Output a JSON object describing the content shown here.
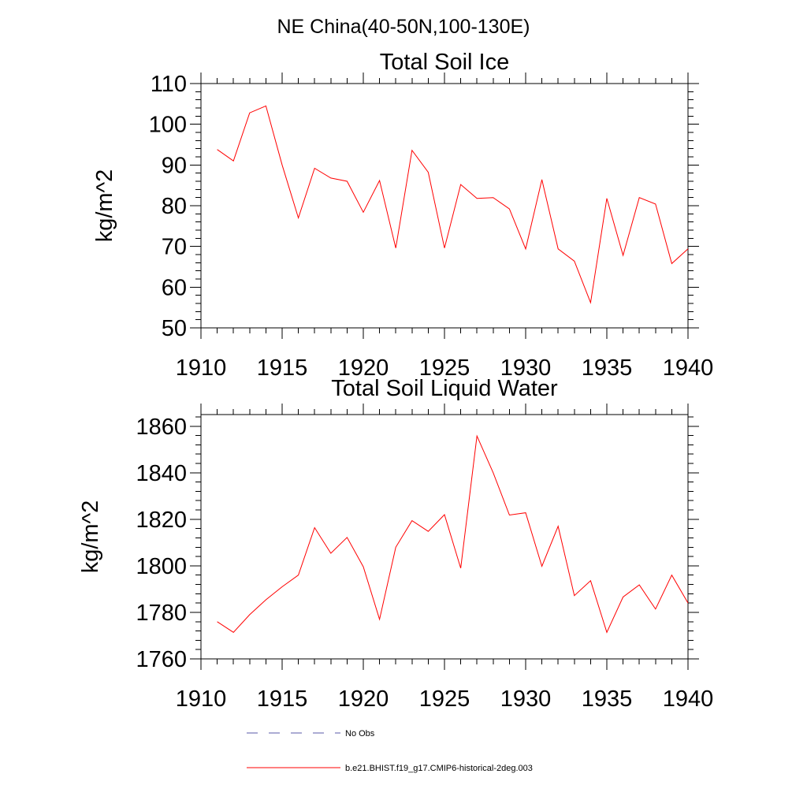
{
  "figure_title": "NE China(40-50N,100-130E)",
  "colors": {
    "model_line": "#ff0000",
    "obs_line": "#5a5aaa",
    "axis": "#000000"
  },
  "legend": {
    "items": [
      {
        "label": "No Obs",
        "style": "dashed",
        "color": "#5a5aaa"
      },
      {
        "label": "b.e21.BHIST.f19_g17.CMIP6-historical-2deg.003",
        "style": "solid",
        "color": "#ff0000"
      }
    ]
  },
  "chart_data": [
    {
      "type": "line",
      "title": "Total Soil Ice",
      "xlabel": "",
      "ylabel": "kg/m^2",
      "xlim": [
        1910,
        1940
      ],
      "ylim": [
        50,
        110
      ],
      "xticks": [
        1910,
        1915,
        1920,
        1925,
        1930,
        1935,
        1940
      ],
      "xtick_labels": [
        "1910",
        "1915",
        "1920",
        "1925",
        "1930",
        "1935",
        "1940"
      ],
      "yticks": [
        50,
        60,
        70,
        80,
        90,
        100,
        110
      ],
      "ytick_labels": [
        "50",
        "60",
        "70",
        "80",
        "90",
        "100",
        "110"
      ],
      "x_minor_step": 1,
      "y_minor_step": 2,
      "grid": false,
      "series": [
        {
          "name": "b.e21.BHIST.f19_g17.CMIP6-historical-2deg.003",
          "color": "#ff0000",
          "x": [
            1911,
            1912,
            1913,
            1914,
            1915,
            1916,
            1917,
            1918,
            1919,
            1920,
            1921,
            1922,
            1923,
            1924,
            1925,
            1926,
            1927,
            1928,
            1929,
            1930,
            1931,
            1932,
            1933,
            1934,
            1935,
            1936,
            1937,
            1938,
            1939,
            1940
          ],
          "values": [
            93.8,
            91.0,
            102.8,
            104.5,
            90.0,
            77.0,
            89.2,
            86.8,
            86.0,
            78.4,
            86.2,
            69.6,
            93.6,
            88.2,
            69.6,
            85.2,
            81.8,
            82.0,
            79.2,
            69.4,
            86.4,
            69.4,
            66.4,
            56.2,
            81.8,
            67.8,
            82.0,
            80.4,
            65.8,
            69.4
          ]
        }
      ]
    },
    {
      "type": "line",
      "title": "Total Soil Liquid Water",
      "xlabel": "",
      "ylabel": "kg/m^2",
      "xlim": [
        1910,
        1940
      ],
      "ylim": [
        1760,
        1865
      ],
      "xticks": [
        1910,
        1915,
        1920,
        1925,
        1930,
        1935,
        1940
      ],
      "xtick_labels": [
        "1910",
        "1915",
        "1920",
        "1925",
        "1930",
        "1935",
        "1940"
      ],
      "yticks": [
        1760,
        1780,
        1800,
        1820,
        1840,
        1860
      ],
      "ytick_labels": [
        "1760",
        "1780",
        "1800",
        "1820",
        "1840",
        "1860"
      ],
      "x_minor_step": 1,
      "y_minor_step": 4,
      "grid": false,
      "series": [
        {
          "name": "b.e21.BHIST.f19_g17.CMIP6-historical-2deg.003",
          "color": "#ff0000",
          "x": [
            1911,
            1912,
            1913,
            1914,
            1915,
            1916,
            1917,
            1918,
            1919,
            1920,
            1921,
            1922,
            1923,
            1924,
            1925,
            1926,
            1927,
            1928,
            1929,
            1930,
            1931,
            1932,
            1933,
            1934,
            1935,
            1936,
            1937,
            1938,
            1939,
            1940
          ],
          "values": [
            1776.0,
            1771.4,
            1779.0,
            1785.4,
            1791.0,
            1796.0,
            1816.4,
            1805.4,
            1812.2,
            1799.6,
            1777.0,
            1808.0,
            1819.4,
            1814.8,
            1822.0,
            1799.0,
            1855.8,
            1840.0,
            1821.8,
            1822.8,
            1799.8,
            1817.0,
            1787.2,
            1793.6,
            1771.4,
            1786.6,
            1791.8,
            1781.4,
            1796.0,
            1784.0
          ]
        }
      ]
    }
  ]
}
